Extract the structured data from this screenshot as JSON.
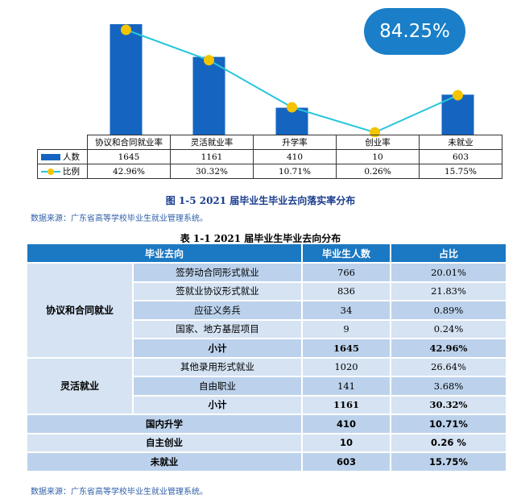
{
  "chart_data": {
    "type": "bar",
    "categories": [
      "协议和合同就业率",
      "灵活就业率",
      "升学率",
      "创业率",
      "未就业"
    ],
    "series": [
      {
        "name": "人数",
        "type": "bar",
        "color": "#1565c0",
        "values": [
          1645,
          1161,
          410,
          10,
          603
        ]
      },
      {
        "name": "比例",
        "type": "line",
        "color": "#26c6da",
        "marker_color": "#f5c400",
        "values": [
          42.96,
          30.32,
          10.71,
          0.26,
          15.75
        ],
        "labels": [
          "42.96%",
          "30.32%",
          "10.71%",
          "0.26%",
          "15.75%"
        ]
      }
    ],
    "grid": false,
    "legend": "data-table-below"
  },
  "badge": "84.25%",
  "figure_caption": "图 1-5   2021 届毕业生毕业去向落实率分布",
  "source_text": "数据来源：广东省高等学校毕业生就业管理系统。",
  "table_caption": "表 1-1   2021 届毕业生毕业去向分布",
  "table": {
    "headers": [
      "毕业去向",
      "毕业生人数",
      "占比"
    ],
    "group1": {
      "label": "协议和合同就业",
      "rows": [
        {
          "name": "签劳动合同形式就业",
          "count": "766",
          "pct": "20.01%"
        },
        {
          "name": "签就业协议形式就业",
          "count": "836",
          "pct": "21.83%"
        },
        {
          "name": "应征义务兵",
          "count": "34",
          "pct": "0.89%"
        },
        {
          "name": "国家、地方基层项目",
          "count": "9",
          "pct": "0.24%"
        }
      ],
      "subtotal": {
        "name": "小计",
        "count": "1645",
        "pct": "42.96%"
      }
    },
    "group2": {
      "label": "灵活就业",
      "rows": [
        {
          "name": "其他录用形式就业",
          "count": "1020",
          "pct": "26.64%"
        },
        {
          "name": "自由职业",
          "count": "141",
          "pct": "3.68%"
        }
      ],
      "subtotal": {
        "name": "小计",
        "count": "1161",
        "pct": "30.32%"
      }
    },
    "totals": [
      {
        "name": "国内升学",
        "count": "410",
        "pct": "10.71%"
      },
      {
        "name": "自主创业",
        "count": "10",
        "pct": "0.26 %"
      },
      {
        "name": "未就业",
        "count": "603",
        "pct": "15.75%"
      }
    ]
  }
}
